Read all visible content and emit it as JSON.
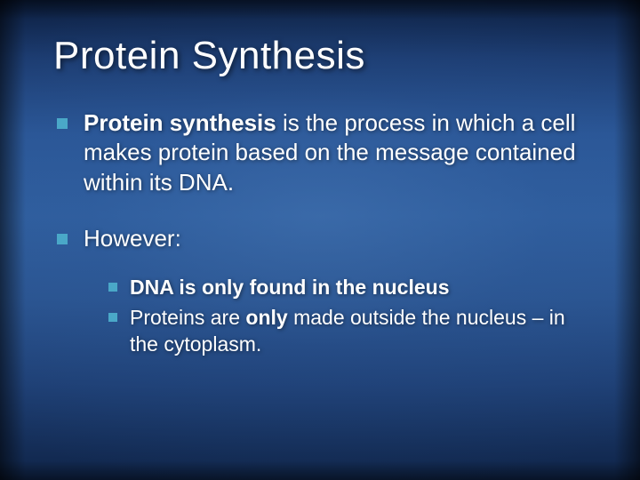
{
  "slide": {
    "title": "Protein Synthesis",
    "bullet_color": "#4aa8c8",
    "text_color": "#ffffff",
    "bullets": [
      {
        "runs": [
          {
            "text": "Protein synthesis",
            "bold": true
          },
          {
            "text": " is the process in which a cell makes protein based on the message contained within its DNA.",
            "bold": false
          }
        ]
      },
      {
        "runs": [
          {
            "text": "However:",
            "bold": false
          }
        ],
        "sub": [
          {
            "runs": [
              {
                "text": "DNA is only found in the nucleus",
                "bold": true
              }
            ]
          },
          {
            "runs": [
              {
                "text": "Proteins are ",
                "bold": false
              },
              {
                "text": "only",
                "bold": true
              },
              {
                "text": " made outside the nucleus – in the cytoplasm.",
                "bold": false
              }
            ]
          }
        ]
      }
    ]
  },
  "style": {
    "title_fontsize": 44,
    "body_fontsize": 26,
    "sub_fontsize": 23,
    "bullet_size": 12,
    "sub_bullet_size": 10,
    "background_gradient": [
      "#0a1b3a",
      "#2f5e9e",
      "#0f2448"
    ]
  }
}
